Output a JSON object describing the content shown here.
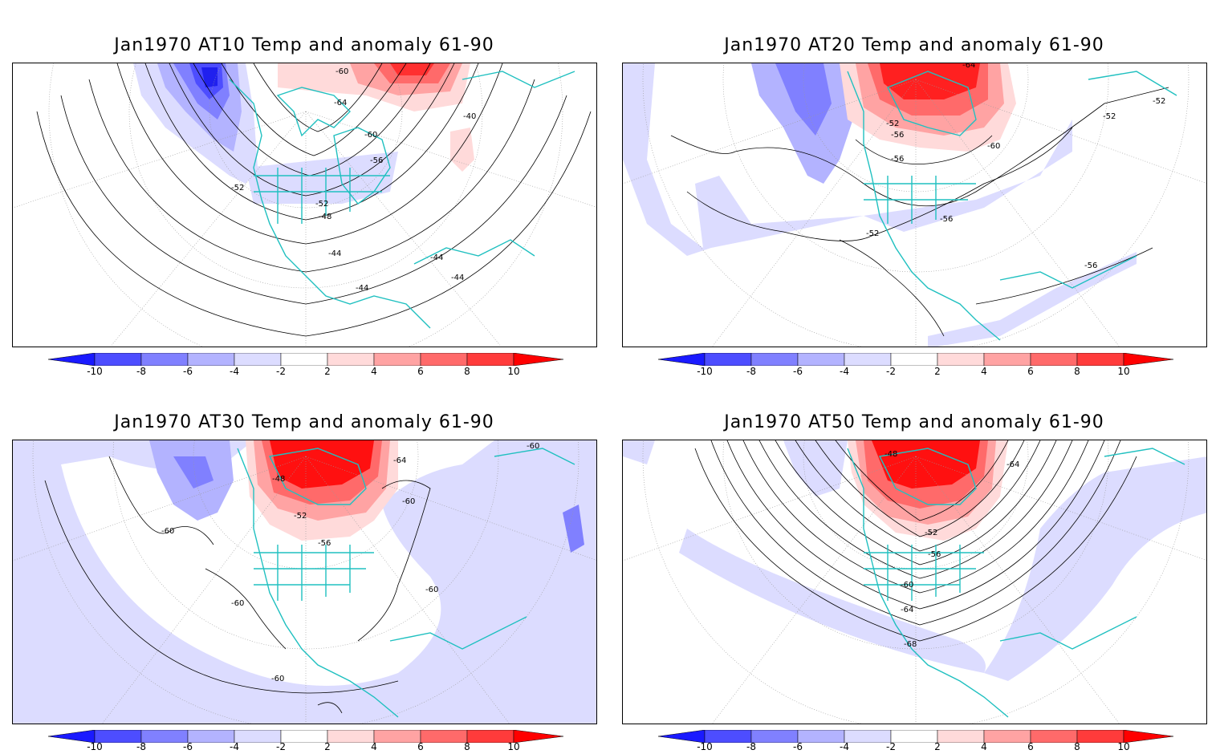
{
  "panels": [
    {
      "id": "at10",
      "title": "Jan1970 AT10 Temp and anomaly 61-90",
      "contour_labels": [
        "-60",
        "-64",
        "-60",
        "-56",
        "-52",
        "-52",
        "-48",
        "-44",
        "-44",
        "-44",
        "-40",
        "-44"
      ],
      "colors": {
        "blue_strong": "#4040ff",
        "blue_mid": "#8080ff",
        "blue_light": "#b3b3ff",
        "blue_pale": "#dcdcff",
        "red_pale": "#ffdada",
        "red_light": "#ffa3a3",
        "red_mid": "#ff6a6a",
        "red_strong": "#ff2020"
      }
    },
    {
      "id": "at20",
      "title": "Jan1970 AT20 Temp and anomaly 61-90",
      "contour_labels": [
        "-64",
        "-52",
        "-60",
        "-56",
        "-56",
        "-52",
        "-52",
        "-52",
        "-56",
        "-56"
      ]
    },
    {
      "id": "at30",
      "title": "Jan1970 AT30 Temp and anomaly 61-90",
      "contour_labels": [
        "-60",
        "-64",
        "-48",
        "-52",
        "-56",
        "-60",
        "-60",
        "-60",
        "-60",
        "-60"
      ]
    },
    {
      "id": "at50",
      "title": "Jan1970 AT50 Temp and anomaly 61-90",
      "contour_labels": [
        "-48",
        "-64",
        "-52",
        "-56",
        "-60",
        "-64",
        "-68"
      ]
    }
  ],
  "colorbar": {
    "labels": [
      "-10",
      "-8",
      "-6",
      "-4",
      "-2",
      "2",
      "4",
      "6",
      "8",
      "10"
    ],
    "colors": [
      "#1a1aff",
      "#4d4dff",
      "#8080ff",
      "#b3b3ff",
      "#dcdcff",
      "#ffffff",
      "#ffdada",
      "#ffa3a3",
      "#ff6a6a",
      "#ff3b3b",
      "#ff0000"
    ]
  },
  "coastline_color": "#20c0c0"
}
